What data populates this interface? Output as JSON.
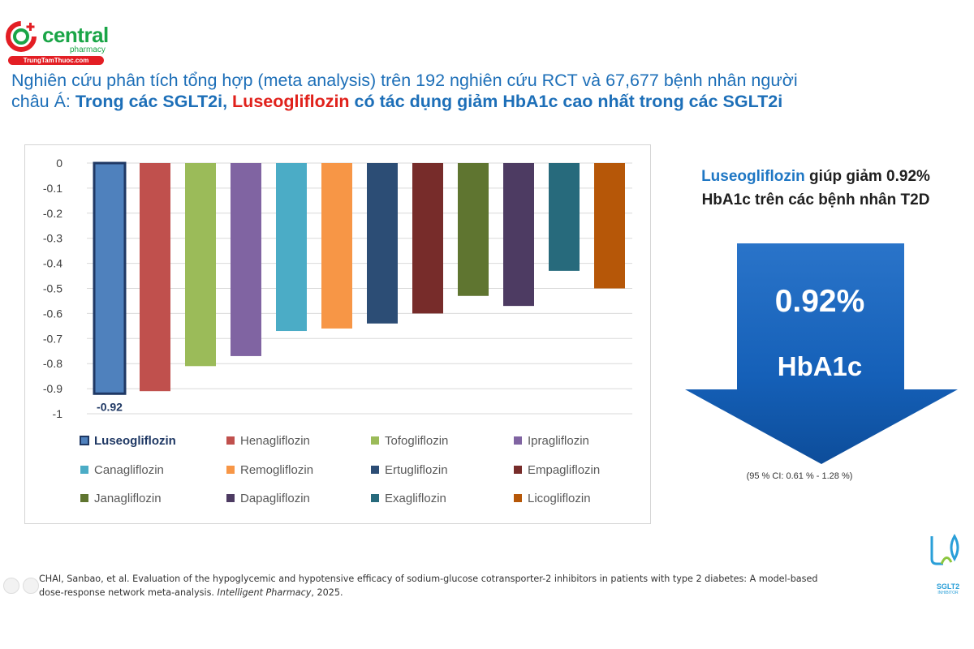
{
  "brand": {
    "name": "central",
    "sub": "pharmacy",
    "url": "TrungTamThuoc.com",
    "color": "#1aa547",
    "url_bg": "#e31e24"
  },
  "title": {
    "line1": "Nghiên cứu phân tích tổng hợp (meta analysis) trên 192 nghiên cứu RCT và 67,677 bệnh nhân người",
    "line2_prefix": "châu Á: ",
    "line2_bold": "Trong các SGLT2i, ",
    "line2_red": "Luseogliflozin",
    "line2_rest": " có tác dụng giảm HbA1c cao nhất trong các SGLT2i"
  },
  "chart_data": {
    "type": "bar",
    "title": "",
    "xlabel": "",
    "ylabel": "",
    "ylim": [
      -1,
      0
    ],
    "yticks": [
      "0",
      "-0.1",
      "-0.2",
      "-0.3",
      "-0.4",
      "-0.5",
      "-0.6",
      "-0.7",
      "-0.8",
      "-0.9",
      "-1"
    ],
    "grid": true,
    "legend_position": "bottom",
    "categories": [
      "Luseogliflozin",
      "Henagliflozin",
      "Tofogliflozin",
      "Ipragliflozin",
      "Canagliflozin",
      "Remogliflozin",
      "Ertugliflozin",
      "Empagliflozin",
      "Janagliflozin",
      "Dapagliflozin",
      "Exagliflozin",
      "Licogliflozin"
    ],
    "values": [
      -0.92,
      -0.91,
      -0.81,
      -0.77,
      -0.67,
      -0.66,
      -0.64,
      -0.6,
      -0.53,
      -0.57,
      -0.43,
      -0.5
    ],
    "colors": [
      "#4f81bd",
      "#c0504d",
      "#9bbb59",
      "#8064a2",
      "#4bacc6",
      "#f79646",
      "#2c4d75",
      "#772c2a",
      "#5f7530",
      "#4d3b62",
      "#276a7c",
      "#b65708"
    ],
    "highlight_index": 0,
    "data_label": "-0.92"
  },
  "panel": {
    "headline_blue": "Luseogliflozin",
    "headline_rest": " giúp giảm 0.92%",
    "headline_line2": "HbA1c trên các bệnh nhân T2D",
    "arrow_value": "0.92%",
    "arrow_label": "HbA1c",
    "ci": "(95 % CI: 0.61 % - 1.28 %)",
    "arrow_color": "#1560b8"
  },
  "citation": {
    "authors": "CHAI, Sanbao, et al. Evaluation of the hypoglycemic and hypotensive efficacy of sodium-glucose cotransporter-2 inhibitors in patients with type 2 diabetes: A model-based",
    "line2": "dose-response network meta-analysis. ",
    "journal": "Intelligent Pharmacy",
    "year": ", 2025."
  },
  "sglt_logo": {
    "text": "SGLT2",
    "sub": "INHIBITOR"
  }
}
